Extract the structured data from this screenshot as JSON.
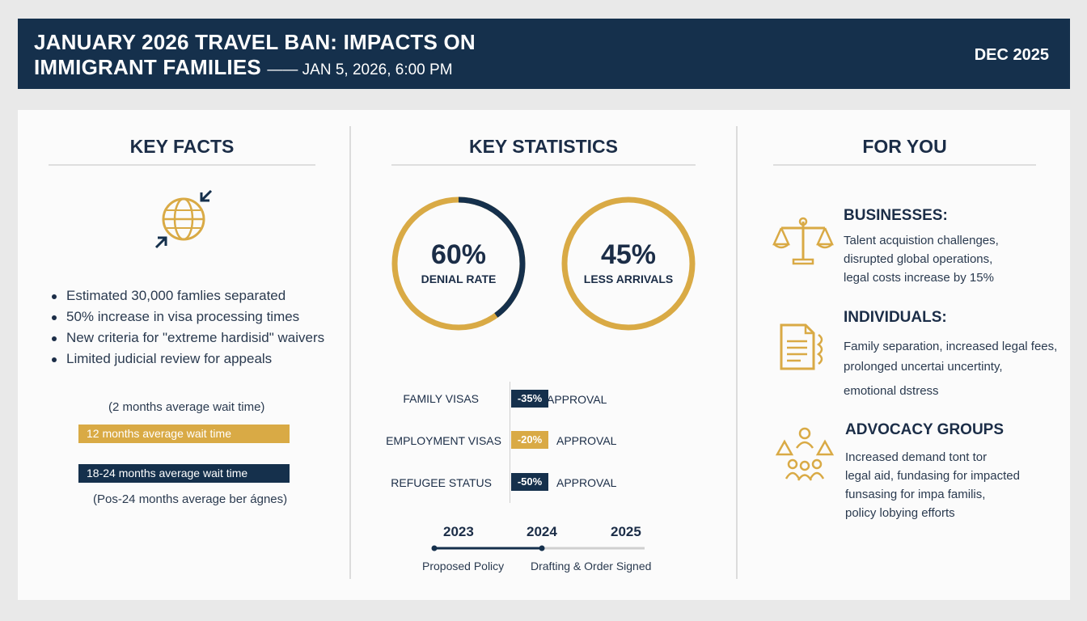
{
  "header": {
    "title_line1": "JANUARY 2026 TRAVEL BAN: IMPACTS ON",
    "title_line2": "IMMIGRANT FAMILIES",
    "subtitle": "JAN 5, 2026, 6:00 PM",
    "date": "DEC 2025"
  },
  "key_facts": {
    "title": "KEY FACTS",
    "icon": "globe-arrows-icon",
    "bullets": [
      "Estimated 30,000 famlies separated",
      "50% increase in visa processing times",
      "New criteria for \"extreme hardisid\" waivers",
      "Limited judicial review for appeals"
    ],
    "wait_note_top": "(2 months average wait time)",
    "wait_bar_gold": "12 months average wait time",
    "wait_bar_navy": "18-24 months average wait time",
    "wait_note_bottom": "(Pos-24 months average ber ágnes)"
  },
  "key_statistics": {
    "title": "KEY STATISTICS",
    "rings": [
      {
        "value": "60%",
        "label": "DENIAL RATE",
        "fraction": 0.6
      },
      {
        "value": "45%",
        "label": "LESS ARRIVALS",
        "fraction": 0.45
      }
    ],
    "visa_changes": [
      {
        "label": "FAMILY VISAS",
        "change": "-35%",
        "suffix": "APPROVAL",
        "color": "#15304c",
        "value": -35
      },
      {
        "label": "EMPLOYMENT VISAS",
        "change": "-20%",
        "suffix": "APPROVAL",
        "color": "#d9aa45",
        "value": -20
      },
      {
        "label": "REFUGEE STATUS",
        "change": "-50%",
        "suffix": "APPROVAL",
        "color": "#15304c",
        "value": -50
      }
    ],
    "timeline": {
      "years": [
        "2023",
        "2024",
        "2025"
      ],
      "labels": [
        "Proposed Policy",
        "Drafting & Order Signed"
      ]
    }
  },
  "for_you": {
    "title": "FOR YOU",
    "sections": [
      {
        "icon": "scales-icon",
        "title": "BUSINESSES:",
        "lines": [
          "Talent acquistion challenges,",
          "disrupted global operations,",
          "legal costs increase by 15%"
        ]
      },
      {
        "icon": "document-icon",
        "title": "INDIVIDUALS:",
        "lines": [
          "Family separation, increased legal fees,",
          "prolonged uncertai uncertinty,",
          "emotional dstress"
        ]
      },
      {
        "icon": "people-icon",
        "title": "ADVOCACY GROUPS",
        "lines": [
          "Increased demand tont tor",
          "legal aid, fundasing for impacted",
          "funsasing for impa familis,",
          "policy lobying efforts"
        ]
      }
    ]
  },
  "colors": {
    "navy": "#15304c",
    "gold": "#d9aa45",
    "background": "#e9e9e9"
  }
}
